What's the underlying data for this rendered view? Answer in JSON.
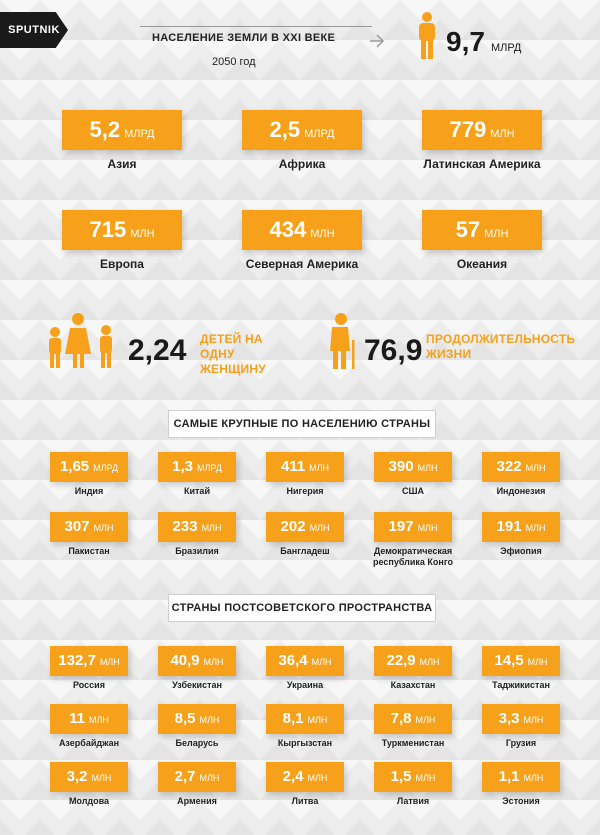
{
  "header": {
    "logo": "SPUTNIK",
    "title": "НАСЕЛЕНИЕ ЗЕМЛИ В XXI ВЕКЕ",
    "subtitle": "2050 год",
    "total_value": "9,7",
    "total_unit": "МЛРД"
  },
  "regions": [
    {
      "value": "5,2",
      "unit": "МЛРД",
      "label": "Азия"
    },
    {
      "value": "2,5",
      "unit": "МЛРД",
      "label": "Африка"
    },
    {
      "value": "779",
      "unit": "МЛН",
      "label": "Латинская Америка"
    },
    {
      "value": "715",
      "unit": "МЛН",
      "label": "Европа"
    },
    {
      "value": "434",
      "unit": "МЛН",
      "label": "Северная Америка"
    },
    {
      "value": "57",
      "unit": "МЛН",
      "label": "Океания"
    }
  ],
  "stats": {
    "children_value": "2,24",
    "children_label": "ДЕТЕЙ НА ОДНУ ЖЕНЩИНУ",
    "life_value": "76,9",
    "life_label": "ПРОДОЛЖИТЕЛЬНОСТЬ ЖИЗНИ"
  },
  "largest": {
    "title": "САМЫЕ КРУПНЫЕ ПО НАСЕЛЕНИЮ СТРАНЫ",
    "items": [
      {
        "value": "1,65",
        "unit": "МЛРД",
        "label": "Индия"
      },
      {
        "value": "1,3",
        "unit": "МЛРД",
        "label": "Китай"
      },
      {
        "value": "411",
        "unit": "МЛН",
        "label": "Нигерия"
      },
      {
        "value": "390",
        "unit": "МЛН",
        "label": "США"
      },
      {
        "value": "322",
        "unit": "МЛН",
        "label": "Индонезия"
      },
      {
        "value": "307",
        "unit": "МЛН",
        "label": "Пакистан"
      },
      {
        "value": "233",
        "unit": "МЛН",
        "label": "Бразилия"
      },
      {
        "value": "202",
        "unit": "МЛН",
        "label": "Бангладеш"
      },
      {
        "value": "197",
        "unit": "МЛН",
        "label": "Демократическая республика Конго"
      },
      {
        "value": "191",
        "unit": "МЛН",
        "label": "Эфиопия"
      }
    ]
  },
  "postsoviet": {
    "title": "СТРАНЫ ПОСТСОВЕТСКОГО ПРОСТРАНСТВА",
    "items": [
      {
        "value": "132,7",
        "unit": "МЛН",
        "label": "Россия"
      },
      {
        "value": "40,9",
        "unit": "МЛН",
        "label": "Узбекистан"
      },
      {
        "value": "36,4",
        "unit": "МЛН",
        "label": "Украина"
      },
      {
        "value": "22,9",
        "unit": "МЛН",
        "label": "Казахстан"
      },
      {
        "value": "14,5",
        "unit": "МЛН",
        "label": "Таджикистан"
      },
      {
        "value": "11",
        "unit": "МЛН",
        "label": "Азербайджан"
      },
      {
        "value": "8,5",
        "unit": "МЛН",
        "label": "Беларусь"
      },
      {
        "value": "8,1",
        "unit": "МЛН",
        "label": "Кыргызстан"
      },
      {
        "value": "7,8",
        "unit": "МЛН",
        "label": "Туркменистан"
      },
      {
        "value": "3,3",
        "unit": "МЛН",
        "label": "Грузия"
      },
      {
        "value": "3,2",
        "unit": "МЛН",
        "label": "Молдова"
      },
      {
        "value": "2,7",
        "unit": "МЛН",
        "label": "Армения"
      },
      {
        "value": "2,4",
        "unit": "МЛН",
        "label": "Литва"
      },
      {
        "value": "1,5",
        "unit": "МЛН",
        "label": "Латвия"
      },
      {
        "value": "1,1",
        "unit": "МЛН",
        "label": "Эстония"
      }
    ]
  },
  "colors": {
    "accent": "#f7a11a",
    "dark": "#1a1a1a"
  },
  "icons": [
    "person-icon",
    "family-icon",
    "elderly-icon",
    "arrow-icon"
  ]
}
